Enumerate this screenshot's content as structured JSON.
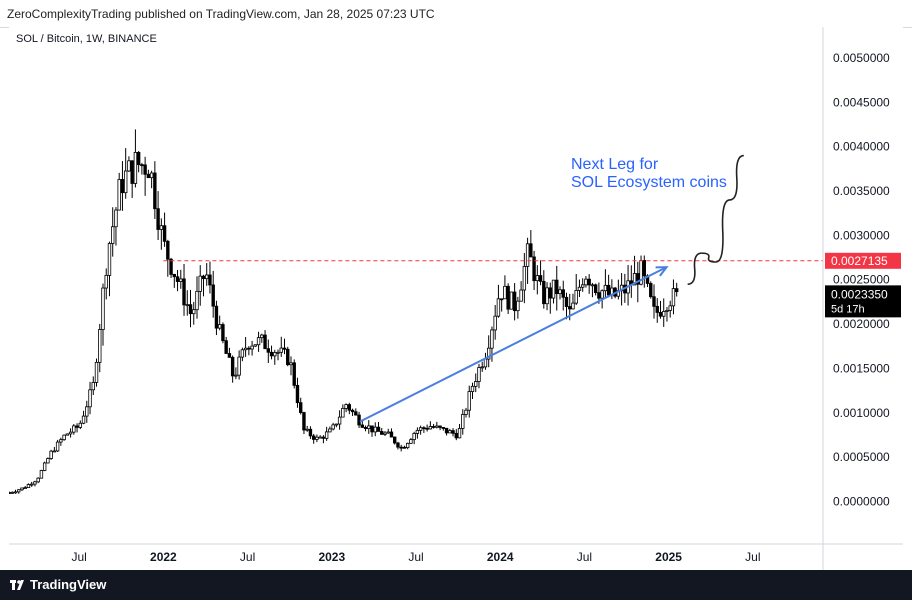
{
  "header": {
    "publisher_line": "ZeroComplexityTrading published on TradingView.com, Jan 28, 2025 07:23 UTC"
  },
  "footer": {
    "brand": "TradingView",
    "logo_icon": "tradingview-logo-icon"
  },
  "chart_data": {
    "type": "candlestick",
    "title": "SOL / Bitcoin, 1W, BINANCE",
    "y_ticks": [
      "0.0050000",
      "0.0045000",
      "0.0040000",
      "0.0035000",
      "0.0030000",
      "0.0025000",
      "0.0020000",
      "0.0015000",
      "0.0010000",
      "0.0005000",
      "0.0000000"
    ],
    "y_tick_values": [
      0.005,
      0.0045,
      0.004,
      0.0035,
      0.003,
      0.0025,
      0.002,
      0.0015,
      0.001,
      0.0005,
      0.0
    ],
    "ylim": [
      -0.00048,
      0.00535
    ],
    "x_ticks": [
      "Jul",
      "2022",
      "Jul",
      "2023",
      "Jul",
      "2024",
      "Jul",
      "2025",
      "Jul"
    ],
    "x_tick_dates": [
      "2021-07",
      "2022-01",
      "2022-07",
      "2023-01",
      "2023-07",
      "2024-01",
      "2024-07",
      "2025-01",
      "2025-07"
    ],
    "xlim": [
      "2021-02",
      "2025-12"
    ],
    "grid": false,
    "price_key_points": [
      [
        "2021-02",
        0.0001
      ],
      [
        "2021-03",
        0.00015
      ],
      [
        "2021-04",
        0.00025
      ],
      [
        "2021-05",
        0.00055
      ],
      [
        "2021-06",
        0.00075
      ],
      [
        "2021-07",
        0.00085
      ],
      [
        "2021-08",
        0.0013
      ],
      [
        "2021-09",
        0.0028
      ],
      [
        "2021-10",
        0.0036
      ],
      [
        "2021-11",
        0.0038
      ],
      [
        "2021-12",
        0.0038
      ],
      [
        "2022-01",
        0.0029
      ],
      [
        "2022-02",
        0.0025
      ],
      [
        "2022-03",
        0.0021
      ],
      [
        "2022-04",
        0.0026
      ],
      [
        "2022-05",
        0.0019
      ],
      [
        "2022-06",
        0.0014
      ],
      [
        "2022-07",
        0.0018
      ],
      [
        "2022-08",
        0.0018
      ],
      [
        "2022-09",
        0.0017
      ],
      [
        "2022-10",
        0.0016
      ],
      [
        "2022-11",
        0.0008
      ],
      [
        "2022-12",
        0.0007
      ],
      [
        "2023-01",
        0.0008
      ],
      [
        "2023-02",
        0.0011
      ],
      [
        "2023-03",
        0.0009
      ],
      [
        "2023-04",
        0.0008
      ],
      [
        "2023-05",
        0.00075
      ],
      [
        "2023-06",
        0.0006
      ],
      [
        "2023-07",
        0.0008
      ],
      [
        "2023-08",
        0.00085
      ],
      [
        "2023-09",
        0.0008
      ],
      [
        "2023-10",
        0.00075
      ],
      [
        "2023-11",
        0.0013
      ],
      [
        "2023-12",
        0.0017
      ],
      [
        "2024-01",
        0.0024
      ],
      [
        "2024-02",
        0.0022
      ],
      [
        "2024-03",
        0.0028
      ],
      [
        "2024-04",
        0.0023
      ],
      [
        "2024-05",
        0.0024
      ],
      [
        "2024-06",
        0.0021
      ],
      [
        "2024-07",
        0.0026
      ],
      [
        "2024-08",
        0.0024
      ],
      [
        "2024-09",
        0.0023
      ],
      [
        "2024-10",
        0.0024
      ],
      [
        "2024-11",
        0.0026
      ],
      [
        "2024-12",
        0.0021
      ],
      [
        "2025-01",
        0.0023
      ]
    ],
    "last_price": "0.0023350",
    "countdown": "5d 17h",
    "horizontal_level": {
      "value": 0.0027135,
      "label": "0.0027135",
      "color": "#f23645"
    },
    "annotation": {
      "lines": [
        "Next Leg for",
        "SOL Ecosystem coins"
      ],
      "color": "#2962ff"
    },
    "trend_arrow": {
      "from": [
        "2023-03",
        0.0009
      ],
      "to": [
        "2024-12",
        0.0028
      ],
      "color": "#4a7fe0"
    },
    "projection_path": [
      [
        "2025-02",
        0.00245
      ],
      [
        "2025-03",
        0.0028
      ],
      [
        "2025-04",
        0.0027
      ],
      [
        "2025-05",
        0.0034
      ],
      [
        "2025-06",
        0.0039
      ]
    ],
    "colors": {
      "candles": "#000000",
      "projection": "#222222"
    }
  }
}
